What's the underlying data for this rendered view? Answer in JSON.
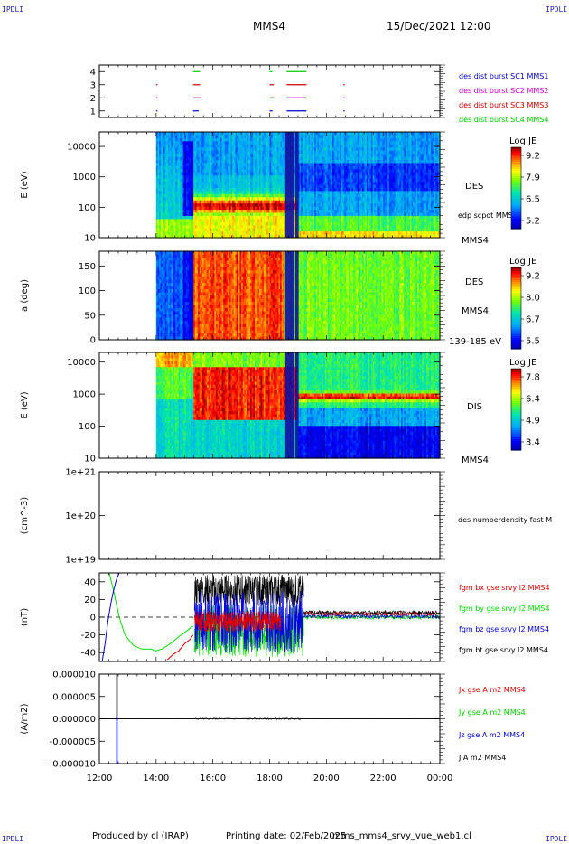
{
  "header": {
    "mission": "MMS4",
    "datetime": "15/Dec/2021 12:00",
    "corner_label": "IPDLI"
  },
  "footer": {
    "producer": "Produced by cl (IRAP)",
    "printing": "Printing date: 02/Feb/2025",
    "filename": "mms_mms4_srvy_vue_web1.cl"
  },
  "time_axis": {
    "ticks": [
      "12:00",
      "14:00",
      "16:00",
      "18:00",
      "20:00",
      "22:00",
      "00:00"
    ],
    "start_hour": 12,
    "end_hour": 24
  },
  "chart_data": [
    {
      "id": "burst",
      "type": "line",
      "ylim": [
        0.5,
        4.5
      ],
      "yticks": [
        "1",
        "2",
        "3",
        "4"
      ],
      "legend": [
        {
          "label": "des dist burst SC1 MMS1",
          "color": "#0000cc"
        },
        {
          "label": "des dist burst SC2 MMS2",
          "color": "#cc00cc"
        },
        {
          "label": "des dist burst SC3 MMS3",
          "color": "#cc0000"
        },
        {
          "label": "des dist burst SC4 MMS4",
          "color": "#00cc00"
        }
      ],
      "intervals": [
        {
          "level": 4,
          "ranges": [
            [
              15.3,
              15.55
            ],
            [
              18.0,
              18.1
            ],
            [
              18.6,
              19.3
            ]
          ]
        },
        {
          "level": 3,
          "ranges": [
            [
              14.0,
              14.03
            ],
            [
              15.3,
              15.55
            ],
            [
              18.0,
              18.15
            ],
            [
              18.6,
              19.3
            ],
            [
              20.6,
              20.63
            ]
          ]
        },
        {
          "level": 2,
          "ranges": [
            [
              14.0,
              14.03
            ],
            [
              15.3,
              15.6
            ],
            [
              18.0,
              18.15
            ],
            [
              18.6,
              19.3
            ],
            [
              20.6,
              20.63
            ]
          ]
        },
        {
          "level": 1,
          "ranges": [
            [
              14.0,
              14.03
            ],
            [
              15.3,
              15.5
            ],
            [
              18.0,
              18.1
            ],
            [
              18.6,
              19.3
            ],
            [
              20.6,
              20.63
            ]
          ]
        }
      ]
    },
    {
      "id": "des_energy",
      "type": "heatmap",
      "ylabel": "E (eV)",
      "scale": "log",
      "ylim": [
        10,
        30000
      ],
      "yticks": [
        "10",
        "100",
        "1000",
        "10000"
      ],
      "label": "DES",
      "bottom_label": "MMS4",
      "overlay_label": "edp scpot MMS4",
      "colorbar": {
        "title": "Log JE",
        "ticks": [
          "9.2",
          "7.9",
          "6.5",
          "5.2"
        ]
      }
    },
    {
      "id": "des_pitch",
      "type": "heatmap",
      "ylabel": "a (deg)",
      "ylim": [
        0,
        180
      ],
      "yticks": [
        "0",
        "50",
        "100",
        "150"
      ],
      "label": "DES",
      "sub_label": "MMS4",
      "range_label": "139-185 eV",
      "colorbar": {
        "title": "Log JE",
        "ticks": [
          "9.2",
          "8.0",
          "6.7",
          "5.5"
        ]
      }
    },
    {
      "id": "dis_energy",
      "type": "heatmap",
      "ylabel": "E (eV)",
      "scale": "log",
      "ylim": [
        10,
        20000
      ],
      "yticks": [
        "10",
        "100",
        "1000",
        "10000"
      ],
      "label": "DIS",
      "bottom_label": "MMS4",
      "colorbar": {
        "title": "Log JE",
        "ticks": [
          "7.8",
          "6.4",
          "4.9",
          "3.4"
        ]
      }
    },
    {
      "id": "density",
      "type": "line",
      "ylabel": "(cm^-3)",
      "scale": "log",
      "ylim": [
        1e+19,
        1e+21
      ],
      "yticks": [
        "1e+19",
        "1e+20",
        "1e+21"
      ],
      "legend": [
        {
          "label": "des numberdensity fast M",
          "color": "#000000"
        }
      ],
      "series": []
    },
    {
      "id": "bfield",
      "type": "line",
      "ylabel": "(nT)",
      "ylim": [
        -50,
        50
      ],
      "yticks": [
        "-40",
        "-20",
        "0",
        "20",
        "40"
      ],
      "legend": [
        {
          "label": "fgm bx gse srvy l2 MMS4",
          "color": "#dd0000"
        },
        {
          "label": "fgm by gse srvy l2 MMS4",
          "color": "#00dd00"
        },
        {
          "label": "fgm bz gse srvy l2 MMS4",
          "color": "#0000dd"
        },
        {
          "label": "fgm bt gse srvy l2 MMS4",
          "color": "#000000"
        }
      ],
      "series": [
        {
          "name": "bx",
          "color": "#dd0000",
          "x": [
            14.4,
            14.6,
            14.8,
            15.0,
            15.2,
            15.3
          ],
          "y": [
            -48,
            -42,
            -38,
            -30,
            -25,
            -20
          ]
        },
        {
          "name": "by",
          "color": "#00dd00",
          "x": [
            12.35,
            12.5,
            12.7,
            12.9,
            13.2,
            13.5,
            13.8,
            14.0,
            14.2,
            14.5,
            14.8,
            15.1,
            15.3
          ],
          "y": [
            50,
            30,
            0,
            -20,
            -32,
            -36,
            -36,
            -38,
            -36,
            -30,
            -22,
            -15,
            -10
          ]
        },
        {
          "name": "bz",
          "color": "#0000dd",
          "x": [
            12.1,
            12.2,
            12.3,
            12.4,
            12.5,
            12.6,
            12.7,
            12.9
          ],
          "y": [
            -50,
            -30,
            -5,
            15,
            30,
            42,
            50,
            50
          ]
        },
        {
          "name": "bt",
          "color": "#000000",
          "x": [],
          "y": []
        }
      ],
      "dashed_zero": true
    },
    {
      "id": "current",
      "type": "line",
      "ylabel": "(A/m2)",
      "ylim": [
        -0.0001,
        0.0001
      ],
      "yticks": [
        "-0.000010",
        "-0.000005",
        "0.000000",
        "0.000005",
        "0.000010"
      ],
      "legend": [
        {
          "label": "Jx gse A m2 MMS4",
          "color": "#dd0000"
        },
        {
          "label": "Jy gse A m2 MMS4",
          "color": "#00cc00"
        },
        {
          "label": "Jz gse A m2 MMS4",
          "color": "#0000dd"
        },
        {
          "label": "J A m2 MMS4",
          "color": "#000000"
        }
      ],
      "spikes": [
        {
          "x": 12.62,
          "ymax": 0.0001,
          "ymin": -3e-06,
          "color": "#000000"
        },
        {
          "x": 12.62,
          "ymax": 4e-06,
          "ymin": -0.0001,
          "color": "#0000dd"
        }
      ]
    }
  ]
}
